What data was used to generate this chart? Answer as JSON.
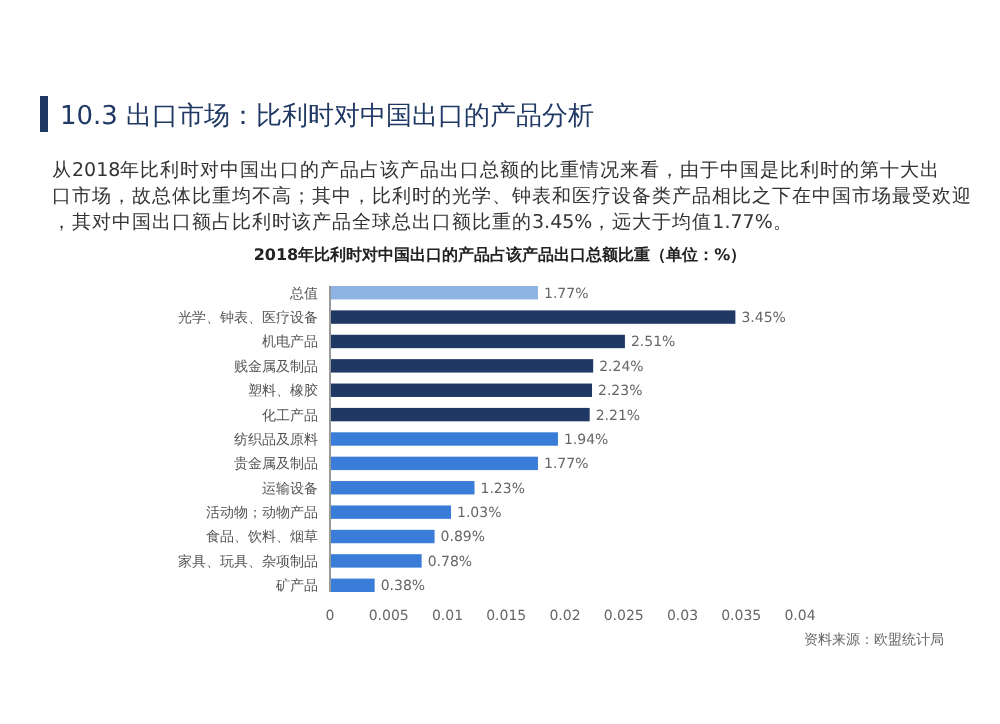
{
  "chart_data": {
    "type": "bar",
    "orientation": "horizontal",
    "title": "10.3 出口市场：比利时对中国出口的产品分析",
    "subtitle": "从2018年比利时对中国出口的产品占该产品出口总额的比重情况来看，由于中国是比利时的第十大出口市场，故总体比重均不高；其中，比利时的光学、钟表和医疗设备类产品相比之下在中国市场最受欢迎，其对中国出口额占比利时该产品全球总出口额比重的3.45%，远大于均值1.77%。",
    "xlabel": "2018年比利时对中国出口的产品占该产品出口总额比重（单位：%）",
    "categories": [
      "总值",
      "光学、钟表、医疗设备",
      "机电产品",
      "贱金属及制品",
      "塑料、橡胶",
      "化工产品",
      "纺织品及原料",
      "贵金属及制品",
      "运输设备",
      "活动物；动物产品",
      "食品、饮料、烟草",
      "家具、玩具、杂项制品",
      "矿产品"
    ],
    "values": [
      0.0177,
      0.0345,
      0.0251,
      0.0224,
      0.0223,
      0.0221,
      0.0194,
      0.0177,
      0.0123,
      0.0103,
      0.0089,
      0.0078,
      0.0038
    ],
    "value_labels": [
      "1.77%",
      "3.45%",
      "2.51%",
      "2.24%",
      "2.23%",
      "2.21%",
      "1.94%",
      "1.77%",
      "1.23%",
      "1.03%",
      "0.89%",
      "0.78%",
      "0.38%"
    ],
    "colors": [
      "#8db4e2",
      "#1f3864",
      "#1f3864",
      "#1f3864",
      "#1f3864",
      "#1f3864",
      "#3a7dd8",
      "#3a7dd8",
      "#3a7dd8",
      "#3a7dd8",
      "#3a7dd8",
      "#3a7dd8",
      "#3a7dd8"
    ],
    "xlim": [
      0,
      0.04
    ],
    "xticks": [
      0,
      0.005,
      0.01,
      0.015,
      0.02,
      0.025,
      0.03,
      0.035,
      0.04
    ],
    "grid": false,
    "annotations": [
      "资料来源：欧盟统计局"
    ]
  }
}
